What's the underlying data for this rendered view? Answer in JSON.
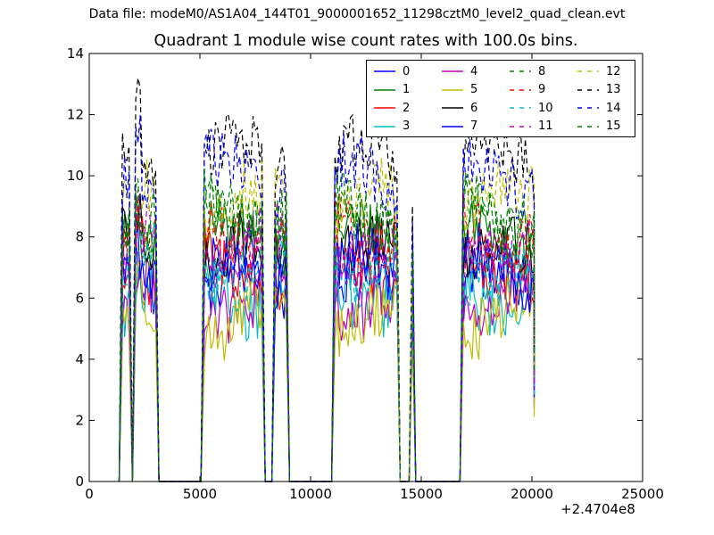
{
  "header": {
    "data_file": "Data file: modeM0/AS1A04_144T01_9000001652_11298cztM0_level2_quad_clean.evt"
  },
  "chart_data": {
    "type": "line",
    "title": "Quadrant 1 module wise count rates with 100.0s bins.",
    "xlabel": "",
    "ylabel": "",
    "x_offset_label": "+2.4704e8",
    "xlim": [
      0,
      25000
    ],
    "ylim": [
      0,
      14
    ],
    "x_ticks": [
      0,
      5000,
      10000,
      15000,
      20000,
      25000
    ],
    "x_tick_labels": [
      "0",
      "5000",
      "10000",
      "15000",
      "20000",
      "25000"
    ],
    "y_ticks": [
      0,
      2,
      4,
      6,
      8,
      10,
      12,
      14
    ],
    "y_tick_labels": [
      "0",
      "2",
      "4",
      "6",
      "8",
      "10",
      "12",
      "14"
    ],
    "grid": false,
    "legend": {
      "placement": "top-right",
      "columns": 4
    },
    "segments": [
      {
        "start": 1500,
        "end": 1800
      },
      {
        "start": 2100,
        "end": 3000
      },
      {
        "start": 5200,
        "end": 7800
      },
      {
        "start": 8400,
        "end": 8900
      },
      {
        "start": 11100,
        "end": 13900
      },
      {
        "start": 14600,
        "end": 14600
      },
      {
        "start": 16900,
        "end": 20100
      }
    ],
    "series": [
      {
        "name": "0",
        "color": "#0000ff",
        "dashed": false,
        "mean": 6.4
      },
      {
        "name": "1",
        "color": "#008000",
        "dashed": false,
        "mean": 7.9
      },
      {
        "name": "2",
        "color": "#ff0000",
        "dashed": false,
        "mean": 6.8
      },
      {
        "name": "3",
        "color": "#00bfbf",
        "dashed": false,
        "mean": 6.2
      },
      {
        "name": "4",
        "color": "#bf00bf",
        "dashed": false,
        "mean": 6.0
      },
      {
        "name": "5",
        "color": "#bfbf00",
        "dashed": false,
        "mean": 5.3
      },
      {
        "name": "6",
        "color": "#000000",
        "dashed": false,
        "mean": 7.4
      },
      {
        "name": "7",
        "color": "#0000ff",
        "dashed": false,
        "mean": 6.9
      },
      {
        "name": "8",
        "color": "#008000",
        "dashed": true,
        "mean": 8.6
      },
      {
        "name": "9",
        "color": "#ff0000",
        "dashed": true,
        "mean": 8.3
      },
      {
        "name": "10",
        "color": "#00bfbf",
        "dashed": true,
        "mean": 7.1
      },
      {
        "name": "11",
        "color": "#bf00bf",
        "dashed": true,
        "mean": 7.6
      },
      {
        "name": "12",
        "color": "#bfbf00",
        "dashed": true,
        "mean": 9.1
      },
      {
        "name": "13",
        "color": "#000000",
        "dashed": true,
        "mean": 10.6
      },
      {
        "name": "14",
        "color": "#0000ff",
        "dashed": true,
        "mean": 10.0
      },
      {
        "name": "15",
        "color": "#008000",
        "dashed": true,
        "mean": 8.9
      }
    ]
  }
}
